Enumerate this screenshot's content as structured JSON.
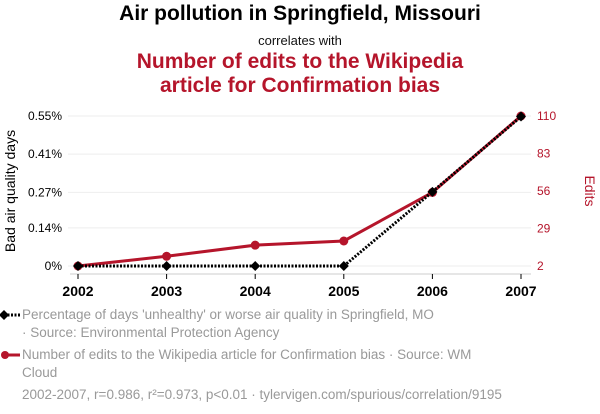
{
  "header": {
    "title": "Air pollution in Springfield, Missouri",
    "subtitle": "correlates with",
    "title2_line1": "Number of edits to the Wikipedia",
    "title2_line2": "article for Confirmation bias"
  },
  "colors": {
    "series1": "#000000",
    "series2": "#b5152b",
    "grid": "#eeeeee",
    "legend_text": "#999999"
  },
  "chart_data": {
    "type": "line",
    "x": [
      2002,
      2003,
      2004,
      2005,
      2006,
      2007
    ],
    "xtick_labels": [
      "2002",
      "2003",
      "2004",
      "2005",
      "2006",
      "2007"
    ],
    "series": [
      {
        "name": "Percentage of days 'unhealthy' or worse air quality in Springfield, MO",
        "axis": "left",
        "values": [
          0,
          0,
          0,
          0,
          0.272,
          0.548
        ],
        "style": "dotted-diamond"
      },
      {
        "name": "Number of edits to the Wikipedia article for Confirmation bias",
        "axis": "right",
        "values": [
          2,
          9,
          17,
          20,
          55,
          110
        ],
        "style": "solid-circle"
      }
    ],
    "left_axis": {
      "label": "Bad air quality days",
      "range": [
        0,
        0.55
      ],
      "ticks": [
        0,
        0.14,
        0.27,
        0.41,
        0.55
      ],
      "tick_labels": [
        "0%",
        "0.14%",
        "0.27%",
        "0.41%",
        "0.55%"
      ]
    },
    "right_axis": {
      "label": "Edits",
      "range": [
        2,
        110
      ],
      "ticks": [
        2,
        29,
        56,
        83,
        110
      ],
      "tick_labels": [
        "2",
        "29",
        "56",
        "83",
        "110"
      ]
    },
    "grid": true
  },
  "legend": {
    "item1_line1": "Percentage of days 'unhealthy' or worse air quality in Springfield, MO",
    "item1_line2": "· Source: Environmental Protection Agency",
    "item2_line1": "Number of edits to the Wikipedia article for Confirmation bias · Source: WM",
    "item2_line2": "Cloud"
  },
  "footer": "2002-2007, r=0.986, r²=0.973, p<0.01 · tylervigen.com/spurious/correlation/9195"
}
